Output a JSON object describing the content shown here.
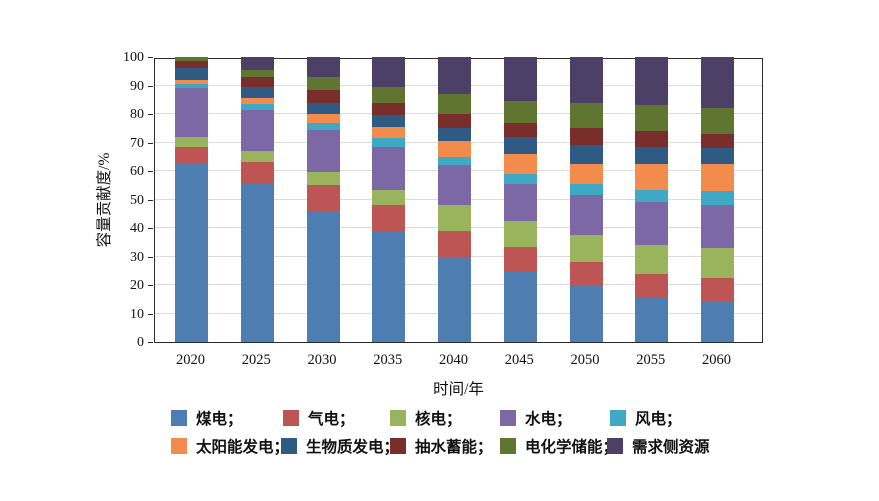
{
  "chart_data": {
    "type": "stacked-bar",
    "xlabel": "时间/年",
    "ylabel": "容量贡献度/%",
    "ylim": [
      0,
      100
    ],
    "ytick_step": 10,
    "grid": true,
    "legend_position": "bottom",
    "categories": [
      "2020",
      "2025",
      "2030",
      "2035",
      "2040",
      "2045",
      "2050",
      "2055",
      "2060"
    ],
    "series": [
      {
        "name": "煤电",
        "legend_label": "煤电；",
        "color": "#4E7EB1",
        "values": [
          62.5,
          55.5,
          46,
          38.5,
          30,
          25,
          19.5,
          15.5,
          14
        ]
      },
      {
        "name": "气电",
        "legend_label": "气电；",
        "color": "#BC5553",
        "values": [
          6,
          7.5,
          9,
          9.5,
          9,
          8.5,
          8.5,
          8.5,
          8.5
        ]
      },
      {
        "name": "核电",
        "legend_label": "核电；",
        "color": "#99B45C",
        "values": [
          3.5,
          4,
          4.5,
          5.5,
          9,
          9,
          9.5,
          10,
          10.5
        ]
      },
      {
        "name": "水电",
        "legend_label": "水电；",
        "color": "#7B68A4",
        "values": [
          17,
          14.5,
          15,
          15,
          14,
          13,
          14,
          15,
          15
        ]
      },
      {
        "name": "风电",
        "legend_label": "风电；",
        "color": "#3FA8C4",
        "values": [
          1.5,
          2,
          2.5,
          3,
          3,
          3.5,
          4,
          4.5,
          5
        ]
      },
      {
        "name": "太阳能发电",
        "legend_label": "太阳能发电；",
        "color": "#F28B4B",
        "values": [
          1.5,
          2,
          3,
          4,
          5.5,
          7,
          7,
          9,
          9.5
        ]
      },
      {
        "name": "生物质发电",
        "legend_label": "生物质发电；",
        "color": "#2E5A84",
        "values": [
          4,
          4,
          4,
          4,
          4.5,
          6,
          6.5,
          6,
          5.5
        ]
      },
      {
        "name": "抽水蓄能",
        "legend_label": "抽水蓄能；",
        "color": "#7A2E2C",
        "values": [
          2.5,
          3.5,
          4.5,
          4.5,
          5,
          5,
          6,
          5.5,
          5
        ]
      },
      {
        "name": "电化学储能",
        "legend_label": "电化学储能；",
        "color": "#5F7530",
        "values": [
          1.5,
          2.5,
          4.5,
          5.5,
          7,
          7.5,
          9,
          9,
          9
        ]
      },
      {
        "name": "需求侧资源",
        "legend_label": "需求侧资源",
        "color": "#4C4066",
        "values": [
          0,
          4.5,
          7,
          10.5,
          13,
          15.5,
          16,
          17,
          18
        ]
      }
    ]
  },
  "axes": {
    "x_label": "时间/年",
    "y_label": "容量贡献度/%",
    "y_ticks": [
      "0",
      "10",
      "20",
      "30",
      "40",
      "50",
      "60",
      "70",
      "80",
      "90",
      "100"
    ]
  }
}
